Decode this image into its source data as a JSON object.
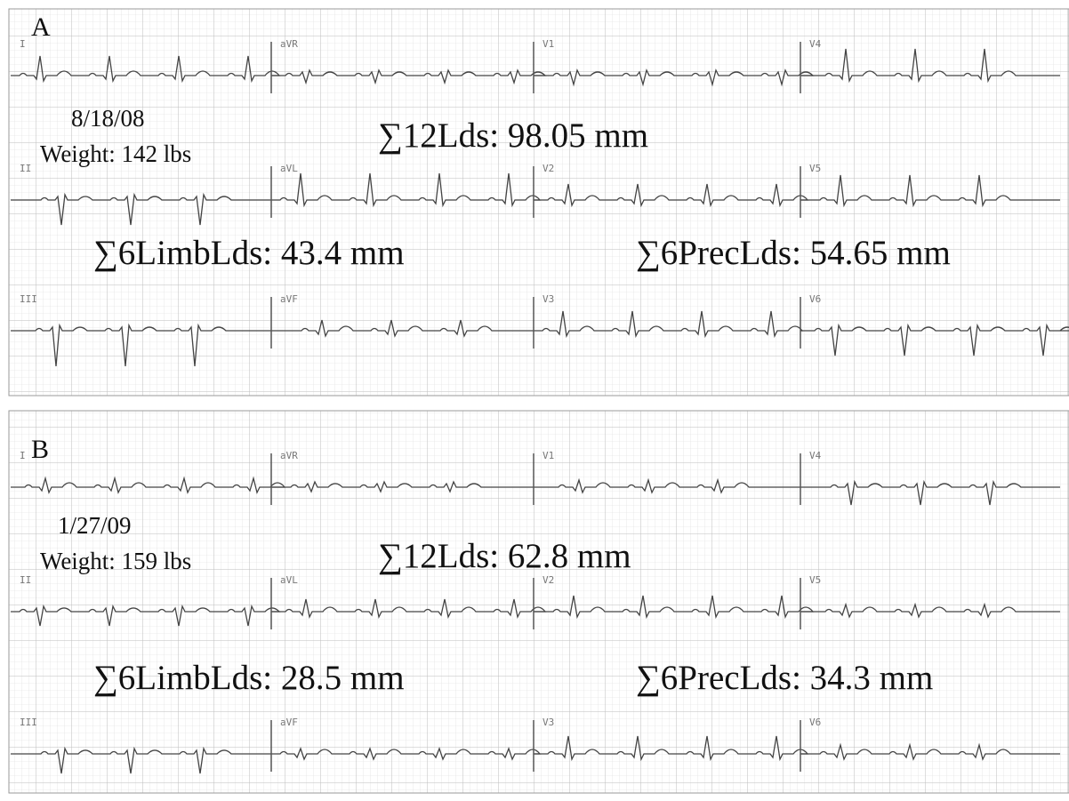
{
  "panels": [
    {
      "label": "A",
      "date": "8/18/08",
      "weight": "Weight: 142 lbs",
      "sum_12_leads": "∑12Lds: 98.05 mm",
      "sum_limb_leads": "∑6LimbLds: 43.4 mm",
      "sum_precordial_leads": "∑6PrecLds: 54.65 mm",
      "leads": [
        [
          "I",
          "aVR",
          "V1",
          "V4"
        ],
        [
          "II",
          "aVL",
          "V2",
          "V5"
        ],
        [
          "III",
          "aVF",
          "V3",
          "V6"
        ]
      ]
    },
    {
      "label": "B",
      "date": "1/27/09",
      "weight": "Weight: 159 lbs",
      "sum_12_leads": "∑12Lds: 62.8 mm",
      "sum_limb_leads": "∑6LimbLds: 28.5 mm",
      "sum_precordial_leads": "∑6PrecLds: 34.3 mm",
      "leads": [
        [
          "I",
          "aVR",
          "V1",
          "V4"
        ],
        [
          "II",
          "aVL",
          "V2",
          "V5"
        ],
        [
          "III",
          "aVF",
          "V3",
          "V6"
        ]
      ]
    }
  ]
}
